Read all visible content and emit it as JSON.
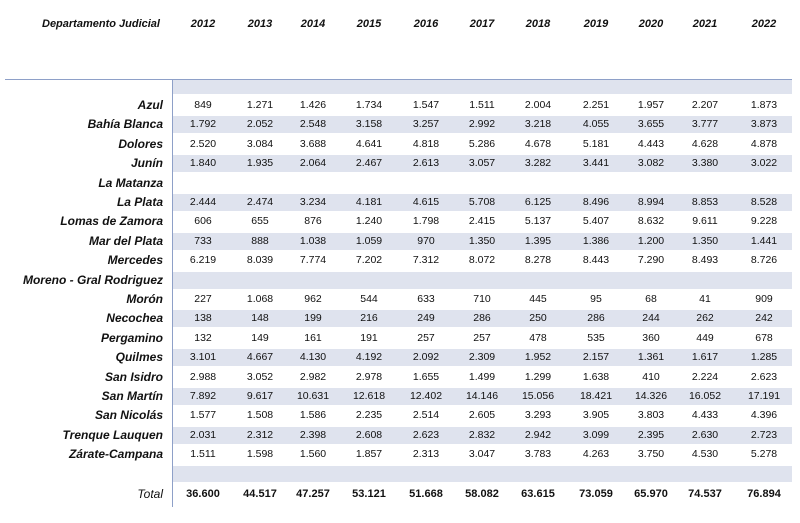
{
  "header": {
    "label": "Departamento Judicial",
    "years": [
      "2012",
      "2013",
      "2014",
      "2015",
      "2016",
      "2017",
      "2018",
      "2019",
      "2020",
      "2021",
      "2022"
    ]
  },
  "rows": [
    {
      "name": "Azul",
      "values": [
        "849",
        "1.271",
        "1.426",
        "1.734",
        "1.547",
        "1.511",
        "2.004",
        "2.251",
        "1.957",
        "2.207",
        "1.873"
      ]
    },
    {
      "name": "Bahía Blanca",
      "values": [
        "1.792",
        "2.052",
        "2.548",
        "3.158",
        "3.257",
        "2.992",
        "3.218",
        "4.055",
        "3.655",
        "3.777",
        "3.873"
      ]
    },
    {
      "name": "Dolores",
      "values": [
        "2.520",
        "3.084",
        "3.688",
        "4.641",
        "4.818",
        "5.286",
        "4.678",
        "5.181",
        "4.443",
        "4.628",
        "4.878"
      ]
    },
    {
      "name": "Junín",
      "values": [
        "1.840",
        "1.935",
        "2.064",
        "2.467",
        "2.613",
        "3.057",
        "3.282",
        "3.441",
        "3.082",
        "3.380",
        "3.022"
      ]
    },
    {
      "name": "La Matanza",
      "values": [
        "",
        "",
        "",
        "",
        "",
        "",
        "",
        "",
        "",
        "",
        ""
      ]
    },
    {
      "name": "La Plata",
      "values": [
        "2.444",
        "2.474",
        "3.234",
        "4.181",
        "4.615",
        "5.708",
        "6.125",
        "8.496",
        "8.994",
        "8.853",
        "8.528"
      ]
    },
    {
      "name": "Lomas de Zamora",
      "values": [
        "606",
        "655",
        "876",
        "1.240",
        "1.798",
        "2.415",
        "5.137",
        "5.407",
        "8.632",
        "9.611",
        "9.228"
      ]
    },
    {
      "name": "Mar del Plata",
      "values": [
        "733",
        "888",
        "1.038",
        "1.059",
        "970",
        "1.350",
        "1.395",
        "1.386",
        "1.200",
        "1.350",
        "1.441"
      ]
    },
    {
      "name": "Mercedes",
      "values": [
        "6.219",
        "8.039",
        "7.774",
        "7.202",
        "7.312",
        "8.072",
        "8.278",
        "8.443",
        "7.290",
        "8.493",
        "8.726"
      ]
    },
    {
      "name": "Moreno - Gral Rodriguez",
      "values": [
        "",
        "",
        "",
        "",
        "",
        "",
        "",
        "",
        "",
        "",
        ""
      ]
    },
    {
      "name": "Morón",
      "values": [
        "227",
        "1.068",
        "962",
        "544",
        "633",
        "710",
        "445",
        "95",
        "68",
        "41",
        "909"
      ]
    },
    {
      "name": "Necochea",
      "values": [
        "138",
        "148",
        "199",
        "216",
        "249",
        "286",
        "250",
        "286",
        "244",
        "262",
        "242"
      ]
    },
    {
      "name": "Pergamino",
      "values": [
        "132",
        "149",
        "161",
        "191",
        "257",
        "257",
        "478",
        "535",
        "360",
        "449",
        "678"
      ]
    },
    {
      "name": "Quilmes",
      "values": [
        "3.101",
        "4.667",
        "4.130",
        "4.192",
        "2.092",
        "2.309",
        "1.952",
        "2.157",
        "1.361",
        "1.617",
        "1.285"
      ]
    },
    {
      "name": "San Isidro",
      "values": [
        "2.988",
        "3.052",
        "2.982",
        "2.978",
        "1.655",
        "1.499",
        "1.299",
        "1.638",
        "410",
        "2.224",
        "2.623"
      ]
    },
    {
      "name": "San Martín",
      "values": [
        "7.892",
        "9.617",
        "10.631",
        "12.618",
        "12.402",
        "14.146",
        "15.056",
        "18.421",
        "14.326",
        "16.052",
        "17.191"
      ]
    },
    {
      "name": "San Nicolás",
      "values": [
        "1.577",
        "1.508",
        "1.586",
        "2.235",
        "2.514",
        "2.605",
        "3.293",
        "3.905",
        "3.803",
        "4.433",
        "4.396"
      ]
    },
    {
      "name": "Trenque Lauquen",
      "values": [
        "2.031",
        "2.312",
        "2.398",
        "2.608",
        "2.623",
        "2.832",
        "2.942",
        "3.099",
        "2.395",
        "2.630",
        "2.723"
      ]
    },
    {
      "name": "Zárate-Campana",
      "values": [
        "1.511",
        "1.598",
        "1.560",
        "1.857",
        "2.313",
        "3.047",
        "3.783",
        "4.263",
        "3.750",
        "4.530",
        "5.278"
      ]
    }
  ],
  "total": {
    "name": "Total",
    "values": [
      "36.600",
      "44.517",
      "47.257",
      "53.121",
      "51.668",
      "58.082",
      "63.615",
      "73.059",
      "65.970",
      "74.537",
      "76.894"
    ]
  }
}
